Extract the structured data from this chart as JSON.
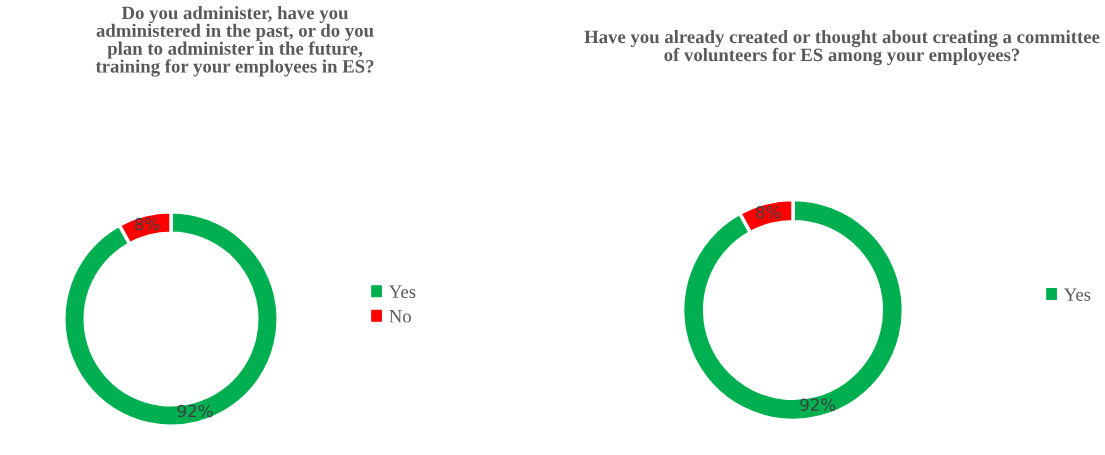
{
  "chart_data": [
    {
      "type": "donut",
      "title": "Do you administer, have you administered in the past, or do you plan to administer in the future, training for your employees in ES?",
      "categories": [
        "Yes",
        "No"
      ],
      "values": [
        92,
        8
      ],
      "colors": [
        "#00b050",
        "#ff0000"
      ],
      "value_labels": [
        "92%",
        "8%"
      ],
      "legend": "right"
    },
    {
      "type": "donut",
      "title": "Have you already created or thought about creating a committee of volunteers for ES among your employees?",
      "categories": [
        "Yes",
        null
      ],
      "values": [
        92,
        8
      ],
      "colors": [
        "#00b050",
        "#ff0000"
      ],
      "value_labels": [
        "92%",
        "8%"
      ],
      "legend": "right"
    }
  ]
}
